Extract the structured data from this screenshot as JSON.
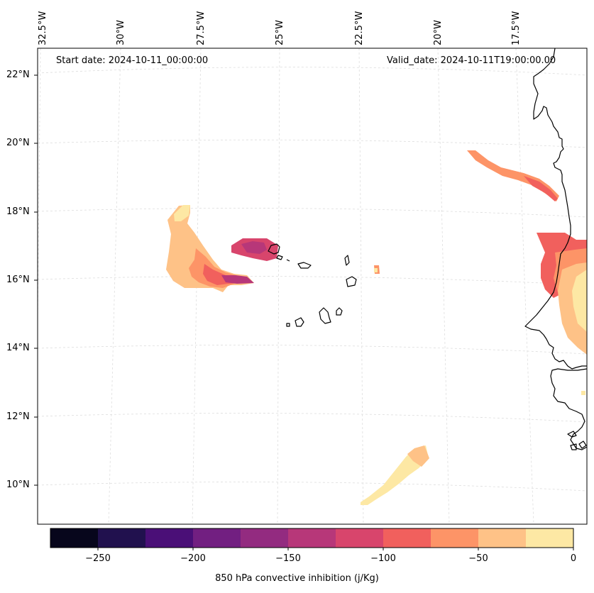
{
  "header": {
    "start_date": "Start date: 2024-10-11_00:00:00",
    "valid_date": "Valid_date: 2024-10-11T19:00:00.00"
  },
  "axes": {
    "lon_labels": [
      "32.5°W",
      "30°W",
      "27.5°W",
      "25°W",
      "22.5°W",
      "20°W",
      "17.5°W"
    ],
    "lat_labels": [
      "22°N",
      "20°N",
      "18°N",
      "16°N",
      "14°N",
      "12°N",
      "10°N"
    ]
  },
  "colorbar": {
    "title": "850 hPa convective inhibition (j/Kg)",
    "tick_labels": [
      "−250",
      "−200",
      "−150",
      "−100",
      "−50",
      "0"
    ],
    "colors": [
      "#07061c",
      "#21114e",
      "#4a0f77",
      "#721f81",
      "#932b80",
      "#b73779",
      "#d8456c",
      "#f1605d",
      "#fd9467",
      "#fec287",
      "#fde8a4"
    ]
  },
  "colors": {
    "coastline": "#000000",
    "gridline": "#dddddd",
    "frame": "#000000"
  }
}
